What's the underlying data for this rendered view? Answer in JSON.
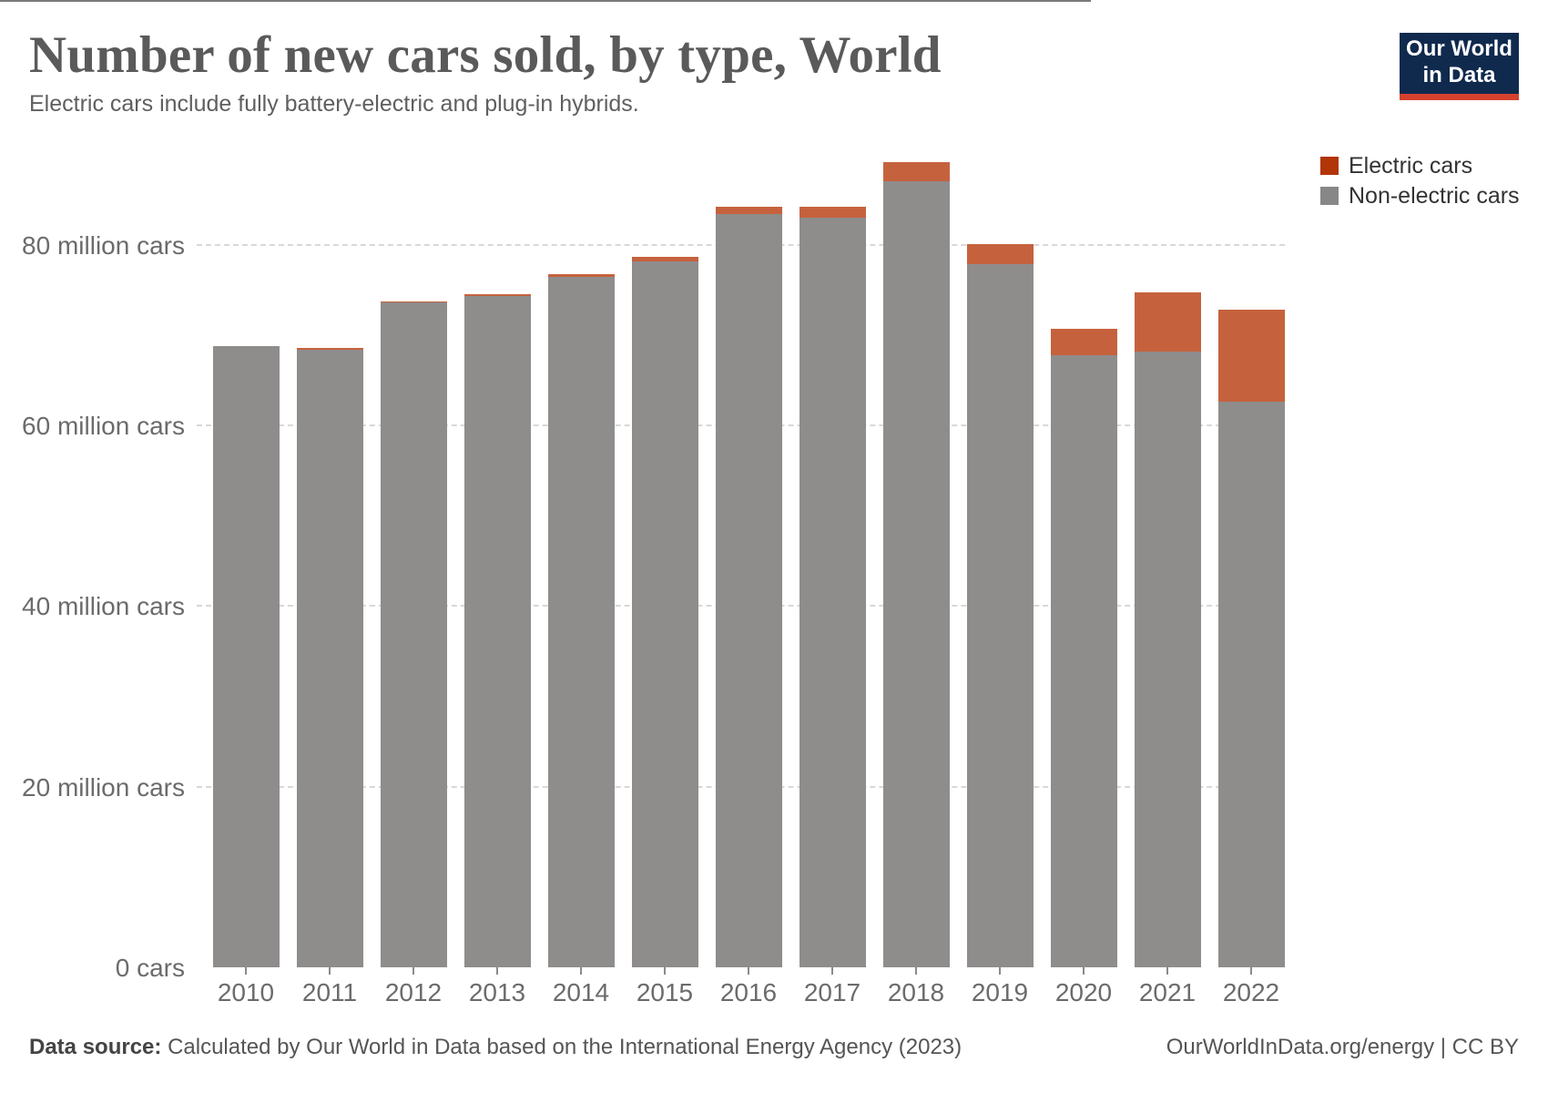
{
  "header": {
    "title": "Number of new cars sold, by type, World",
    "subtitle": "Electric cars include fully battery-electric and plug-in hybrids.",
    "logo": {
      "line1": "Our World",
      "line2": "in Data"
    }
  },
  "legend": {
    "items": [
      {
        "label": "Electric cars",
        "color": "#b13507"
      },
      {
        "label": "Non-electric cars",
        "color": "#878787"
      }
    ]
  },
  "chart_data": {
    "type": "bar",
    "stacked": true,
    "title": "Number of new cars sold, by type, World",
    "xlabel": "",
    "ylabel": "million cars",
    "ylim": [
      0,
      90
    ],
    "grid": "horizontal-dashed",
    "legend_position": "top-right",
    "categories": [
      "2010",
      "2011",
      "2012",
      "2013",
      "2014",
      "2015",
      "2016",
      "2017",
      "2018",
      "2019",
      "2020",
      "2021",
      "2022"
    ],
    "series": [
      {
        "name": "Electric cars",
        "color": "#c5623d",
        "values": [
          0.02,
          0.08,
          0.13,
          0.2,
          0.3,
          0.5,
          0.76,
          1.2,
          2.1,
          2.3,
          2.9,
          6.5,
          10.2
        ]
      },
      {
        "name": "Non-electric cars",
        "color": "#8f8c8c",
        "values": [
          68.8,
          68.4,
          73.6,
          74.3,
          76.4,
          78.1,
          83.4,
          83.0,
          87.0,
          77.8,
          67.8,
          68.2,
          62.6
        ]
      }
    ],
    "y_ticks": [
      {
        "value": 80,
        "label": "80 million cars"
      },
      {
        "value": 60,
        "label": "60 million cars"
      },
      {
        "value": 40,
        "label": "40 million cars"
      },
      {
        "value": 20,
        "label": "20 million cars"
      },
      {
        "value": 0,
        "label": "0 cars"
      }
    ]
  },
  "footer": {
    "source_label": "Data source:",
    "source_text": "Calculated by Our World in Data based on the International Energy Agency (2023)",
    "link_text": "OurWorldInData.org/energy | CC BY"
  }
}
